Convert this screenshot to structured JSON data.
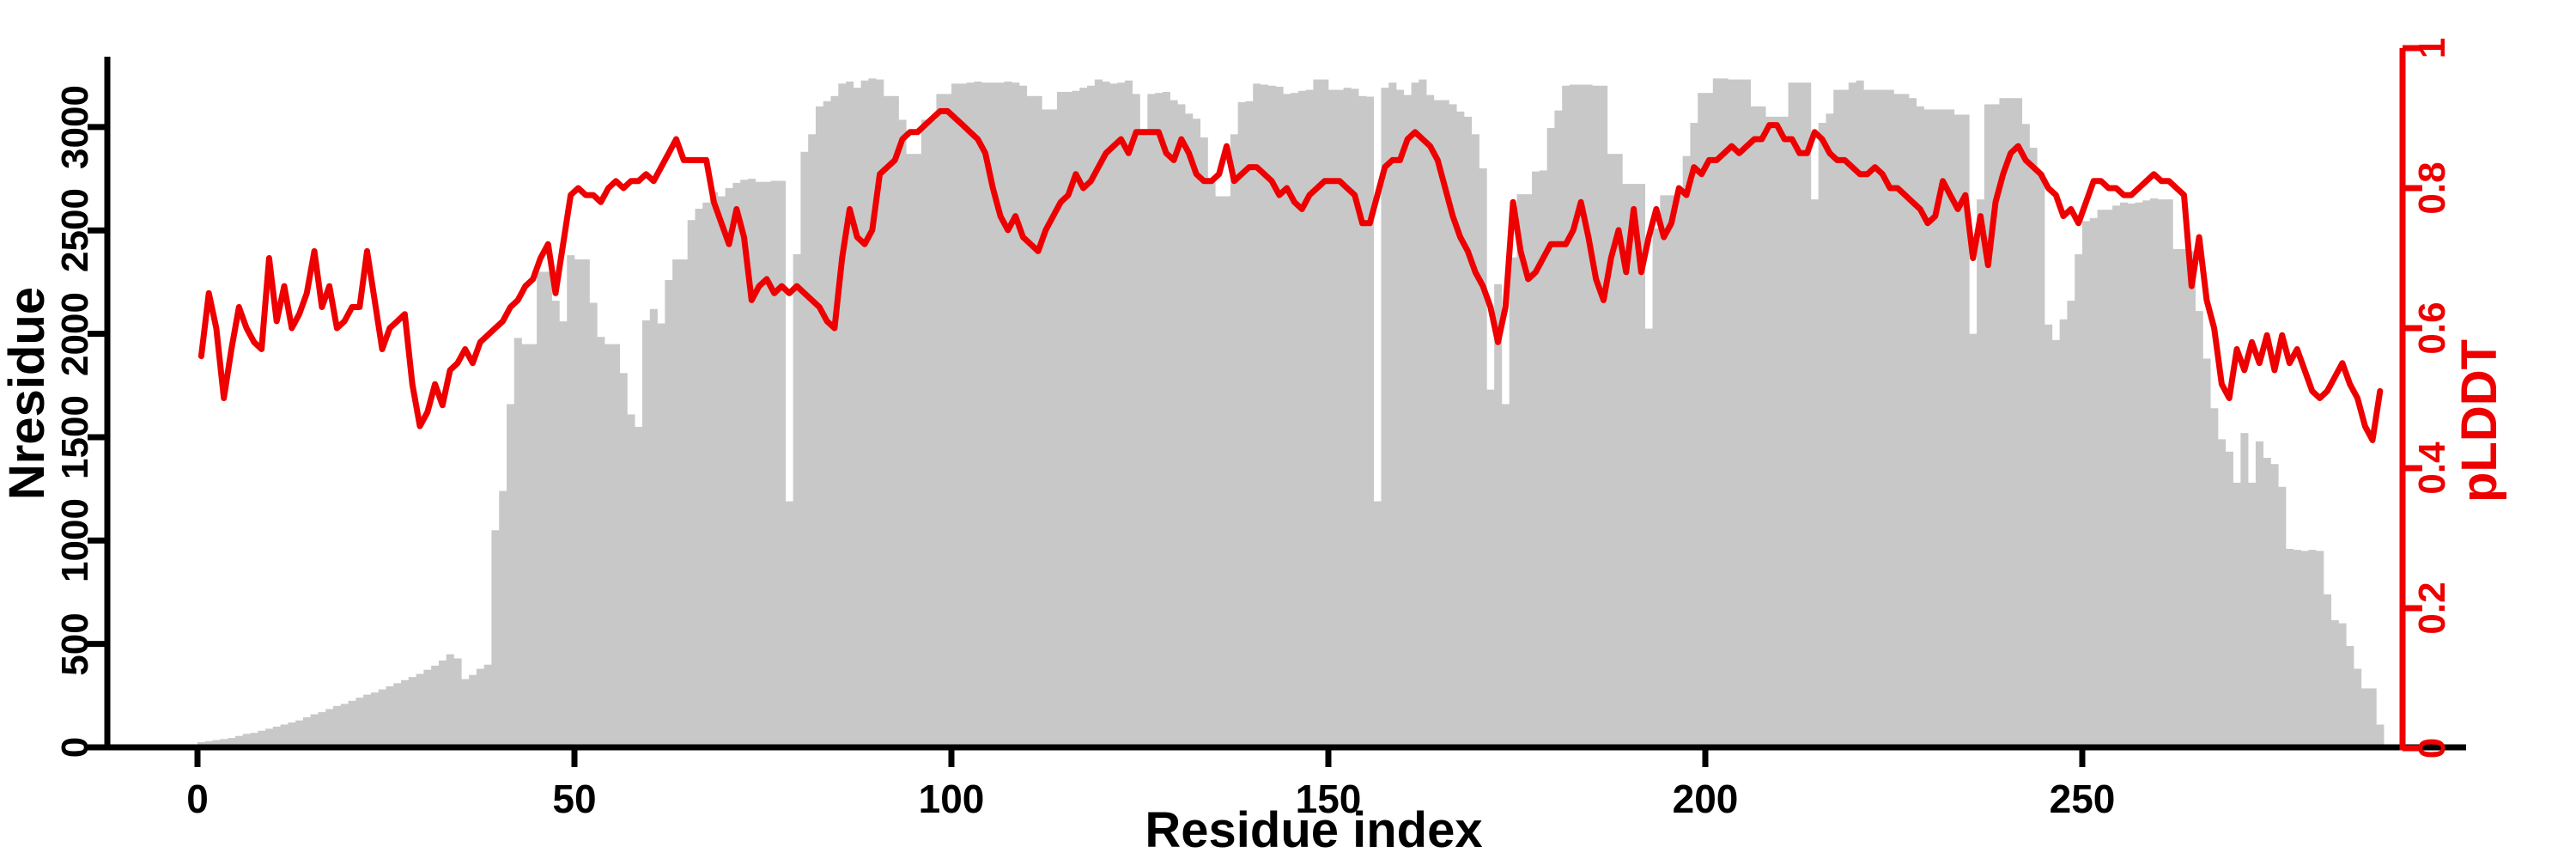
{
  "figure": {
    "xlabel": "Residue index",
    "ylabel_left": "Nresidue",
    "ylabel_right": "pLDDT"
  },
  "chart_data": {
    "type": "bar",
    "title": "",
    "xlabel": "Residue index",
    "x_axis": {
      "label": "Residue index",
      "tick_values": [
        0,
        50,
        100,
        150,
        200,
        250
      ],
      "range": [
        0,
        290
      ],
      "grid": false
    },
    "left_axis": {
      "label": "Nresidue",
      "tick_values": [
        0,
        500,
        1000,
        1500,
        2000,
        2500,
        3000
      ],
      "range": [
        0,
        3340
      ]
    },
    "right_axis": {
      "label": "pLDDT",
      "tick_values": [
        0,
        0.2,
        0.4,
        0.6,
        0.8,
        1
      ],
      "range": [
        0,
        1
      ]
    },
    "colors": {
      "bar": "#c8c8c8",
      "line": "#ee0000",
      "axis": "#000000"
    },
    "legend": "none",
    "x_start": 0,
    "x_step": 1,
    "series": [
      {
        "name": "Nresidue",
        "type": "bar",
        "axis": "left",
        "color": "#c8c8c8",
        "values": [
          25,
          30,
          35,
          40,
          45,
          55,
          65,
          70,
          80,
          90,
          100,
          110,
          120,
          130,
          145,
          160,
          170,
          185,
          200,
          210,
          225,
          240,
          255,
          265,
          280,
          295,
          310,
          325,
          340,
          355,
          375,
          395,
          420,
          450,
          430,
          330,
          350,
          380,
          400,
          1050,
          1240,
          1660,
          1980,
          1950,
          1950,
          2300,
          2300,
          2160,
          2060,
          2380,
          2360,
          2360,
          2150,
          1985,
          1950,
          1950,
          1810,
          1610,
          1550,
          2065,
          2120,
          2050,
          2260,
          2360,
          2360,
          2550,
          2605,
          2635,
          2685,
          2665,
          2705,
          2730,
          2745,
          2750,
          2735,
          2735,
          2740,
          2740,
          1190,
          2385,
          2880,
          2965,
          3100,
          3125,
          3150,
          3210,
          3220,
          3190,
          3225,
          3235,
          3230,
          3150,
          3150,
          3035,
          2870,
          2870,
          3035,
          3035,
          3160,
          3160,
          3210,
          3210,
          3215,
          3220,
          3215,
          3215,
          3215,
          3220,
          3215,
          3200,
          3150,
          3150,
          3085,
          3085,
          3170,
          3170,
          3175,
          3190,
          3200,
          3230,
          3220,
          3210,
          3215,
          3225,
          3160,
          2990,
          3160,
          3165,
          3170,
          3130,
          3110,
          3065,
          3040,
          2950,
          2740,
          2665,
          2665,
          2965,
          3120,
          3125,
          3210,
          3205,
          3200,
          3195,
          3160,
          3165,
          3175,
          3180,
          3230,
          3230,
          3180,
          3180,
          3190,
          3185,
          3150,
          3147,
          1190,
          3190,
          3215,
          3180,
          3155,
          3215,
          3230,
          3155,
          3130,
          3130,
          3110,
          3075,
          3050,
          2965,
          2800,
          1730,
          2240,
          1660,
          2370,
          2675,
          2675,
          2785,
          2790,
          2995,
          3080,
          3200,
          3205,
          3205,
          3205,
          3200,
          3200,
          2870,
          2870,
          2725,
          2725,
          2725,
          2025,
          2510,
          2670,
          2670,
          2680,
          2860,
          3020,
          3165,
          3165,
          3235,
          3235,
          3230,
          3230,
          3230,
          3100,
          3100,
          3050,
          3050,
          3050,
          3215,
          3215,
          3215,
          2650,
          3020,
          3065,
          3180,
          3180,
          3215,
          3225,
          3180,
          3180,
          3180,
          3180,
          3160,
          3160,
          3140,
          3100,
          3085,
          3085,
          3085,
          3085,
          3060,
          3060,
          2000,
          2650,
          3110,
          3110,
          3140,
          3140,
          3140,
          3015,
          2900,
          2780,
          2045,
          1970,
          2070,
          2160,
          2385,
          2545,
          2560,
          2600,
          2600,
          2620,
          2635,
          2630,
          2635,
          2645,
          2655,
          2650,
          2650,
          2410,
          2410,
          2400,
          2110,
          1880,
          1640,
          1490,
          1430,
          1280,
          1520,
          1280,
          1480,
          1400,
          1370,
          1260,
          960,
          955,
          950,
          955,
          950,
          740,
          615,
          600,
          490,
          380,
          285,
          285,
          110
        ]
      },
      {
        "name": "pLDDT",
        "type": "line",
        "axis": "right",
        "color": "#ee0000",
        "values": [
          0.56,
          0.65,
          0.6,
          0.5,
          0.57,
          0.63,
          0.6,
          0.58,
          0.57,
          0.7,
          0.61,
          0.66,
          0.6,
          0.62,
          0.65,
          0.71,
          0.63,
          0.66,
          0.6,
          0.61,
          0.63,
          0.63,
          0.71,
          0.64,
          0.57,
          0.6,
          0.61,
          0.62,
          0.52,
          0.46,
          0.48,
          0.52,
          0.49,
          0.54,
          0.55,
          0.57,
          0.55,
          0.58,
          0.59,
          0.6,
          0.61,
          0.63,
          0.64,
          0.66,
          0.67,
          0.7,
          0.72,
          0.65,
          0.72,
          0.79,
          0.8,
          0.79,
          0.79,
          0.78,
          0.8,
          0.81,
          0.8,
          0.81,
          0.81,
          0.82,
          0.81,
          0.83,
          0.85,
          0.87,
          0.84,
          0.84,
          0.84,
          0.84,
          0.78,
          0.75,
          0.72,
          0.77,
          0.73,
          0.64,
          0.66,
          0.67,
          0.65,
          0.66,
          0.65,
          0.66,
          0.65,
          0.64,
          0.63,
          0.61,
          0.6,
          0.7,
          0.77,
          0.73,
          0.72,
          0.74,
          0.82,
          0.83,
          0.84,
          0.87,
          0.88,
          0.88,
          0.89,
          0.9,
          0.91,
          0.91,
          0.9,
          0.89,
          0.88,
          0.87,
          0.85,
          0.8,
          0.76,
          0.74,
          0.76,
          0.73,
          0.72,
          0.71,
          0.74,
          0.76,
          0.78,
          0.79,
          0.82,
          0.8,
          0.81,
          0.83,
          0.85,
          0.86,
          0.87,
          0.85,
          0.88,
          0.88,
          0.88,
          0.88,
          0.85,
          0.84,
          0.87,
          0.85,
          0.82,
          0.81,
          0.81,
          0.82,
          0.86,
          0.81,
          0.82,
          0.83,
          0.83,
          0.82,
          0.81,
          0.79,
          0.8,
          0.78,
          0.77,
          0.79,
          0.8,
          0.81,
          0.81,
          0.81,
          0.8,
          0.79,
          0.75,
          0.75,
          0.79,
          0.83,
          0.84,
          0.84,
          0.87,
          0.88,
          0.87,
          0.86,
          0.84,
          0.8,
          0.76,
          0.73,
          0.71,
          0.68,
          0.66,
          0.63,
          0.58,
          0.63,
          0.78,
          0.71,
          0.67,
          0.68,
          0.7,
          0.72,
          0.72,
          0.72,
          0.74,
          0.78,
          0.73,
          0.67,
          0.64,
          0.7,
          0.74,
          0.68,
          0.77,
          0.68,
          0.73,
          0.77,
          0.73,
          0.75,
          0.8,
          0.79,
          0.83,
          0.82,
          0.84,
          0.84,
          0.85,
          0.86,
          0.85,
          0.86,
          0.87,
          0.87,
          0.89,
          0.89,
          0.87,
          0.87,
          0.85,
          0.85,
          0.88,
          0.87,
          0.85,
          0.84,
          0.84,
          0.83,
          0.82,
          0.82,
          0.83,
          0.82,
          0.8,
          0.8,
          0.79,
          0.78,
          0.77,
          0.75,
          0.76,
          0.81,
          0.79,
          0.77,
          0.79,
          0.7,
          0.76,
          0.69,
          0.78,
          0.82,
          0.85,
          0.86,
          0.84,
          0.83,
          0.82,
          0.8,
          0.79,
          0.76,
          0.77,
          0.75,
          0.78,
          0.81,
          0.81,
          0.8,
          0.8,
          0.79,
          0.79,
          0.8,
          0.81,
          0.82,
          0.81,
          0.81,
          0.8,
          0.79,
          0.66,
          0.73,
          0.64,
          0.6,
          0.52,
          0.5,
          0.57,
          0.54,
          0.58,
          0.55,
          0.59,
          0.54,
          0.59,
          0.55,
          0.57,
          0.54,
          0.51,
          0.5,
          0.51,
          0.53,
          0.55,
          0.52,
          0.5,
          0.46,
          0.44,
          0.51
        ]
      }
    ]
  }
}
